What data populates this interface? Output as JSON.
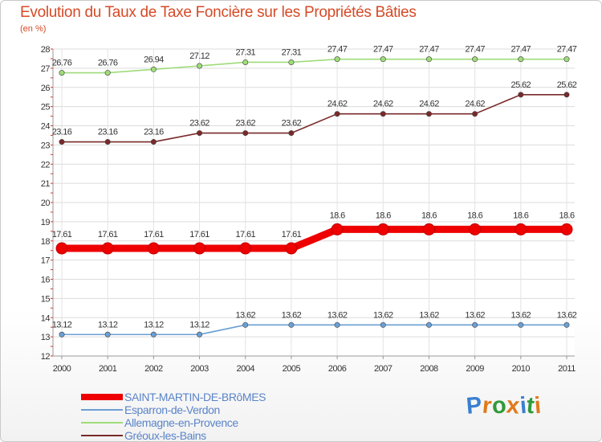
{
  "chart_data": {
    "type": "line",
    "title": "Evolution du Taux de Taxe Foncière sur les Propriétés Bâties",
    "ylabel": "(en %)",
    "xlabel": "",
    "ylim": [
      12,
      28
    ],
    "yticks": [
      12,
      13,
      14,
      15,
      16,
      17,
      18,
      19,
      20,
      21,
      22,
      23,
      24,
      25,
      26,
      27,
      28
    ],
    "categories": [
      "2000",
      "2001",
      "2002",
      "2003",
      "2004",
      "2005",
      "2006",
      "2007",
      "2008",
      "2009",
      "2010",
      "2011"
    ],
    "grid": true,
    "series": [
      {
        "name": "SAINT-MARTIN-DE-BRôMES",
        "color": "#ee0000",
        "emphasis": true,
        "values": [
          17.61,
          17.61,
          17.61,
          17.61,
          17.61,
          17.61,
          18.6,
          18.6,
          18.6,
          18.6,
          18.6,
          18.6
        ],
        "labels": [
          "17.61",
          "17.61",
          "17.61",
          "17.61",
          "17.61",
          "17.61",
          "18.6",
          "18.6",
          "18.6",
          "18.6",
          "18.6",
          "18.6"
        ]
      },
      {
        "name": "Esparron-de-Verdon",
        "color": "#6b9fd4",
        "emphasis": false,
        "values": [
          13.12,
          13.12,
          13.12,
          13.12,
          13.62,
          13.62,
          13.62,
          13.62,
          13.62,
          13.62,
          13.62,
          13.62
        ],
        "labels": [
          "13.12",
          "13.12",
          "13.12",
          "13.12",
          "13.62",
          "13.62",
          "13.62",
          "13.62",
          "13.62",
          "13.62",
          "13.62",
          "13.62"
        ]
      },
      {
        "name": "Allemagne-en-Provence",
        "color": "#9fdc79",
        "emphasis": false,
        "values": [
          26.76,
          26.76,
          26.94,
          27.12,
          27.31,
          27.31,
          27.47,
          27.47,
          27.47,
          27.47,
          27.47,
          27.47
        ],
        "labels": [
          "26.76",
          "26.76",
          "26.94",
          "27.12",
          "27.31",
          "27.31",
          "27.47",
          "27.47",
          "27.47",
          "27.47",
          "27.47",
          "27.47"
        ]
      },
      {
        "name": "Gréoux-les-Bains",
        "color": "#7a2a2a",
        "emphasis": false,
        "values": [
          23.16,
          23.16,
          23.16,
          23.62,
          23.62,
          23.62,
          24.62,
          24.62,
          24.62,
          24.62,
          25.62,
          25.62
        ],
        "labels": [
          "23.16",
          "23.16",
          "23.16",
          "23.62",
          "23.62",
          "23.62",
          "24.62",
          "24.62",
          "24.62",
          "24.62",
          "25.62",
          "25.62"
        ]
      }
    ]
  },
  "logo": {
    "letters": [
      "P",
      "r",
      "o",
      "x",
      "i",
      "t",
      "i"
    ],
    "colors": [
      "#3a7fd0",
      "#e07a1c",
      "#2f9a3a",
      "#e07a1c",
      "#3a7fd0",
      "#2f9a3a",
      "#e07a1c"
    ]
  }
}
